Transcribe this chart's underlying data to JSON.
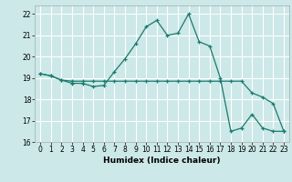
{
  "title": "",
  "xlabel": "Humidex (Indice chaleur)",
  "background_color": "#cce8e8",
  "grid_color": "#ffffff",
  "line_color": "#1a7a6e",
  "x": [
    0,
    1,
    2,
    3,
    4,
    5,
    6,
    7,
    8,
    9,
    10,
    11,
    12,
    13,
    14,
    15,
    16,
    17,
    18,
    19,
    20,
    21,
    22,
    23
  ],
  "line1": [
    19.2,
    19.1,
    18.9,
    18.75,
    18.75,
    18.6,
    18.65,
    19.3,
    19.9,
    20.6,
    21.4,
    21.7,
    21.0,
    21.1,
    22.0,
    20.7,
    20.5,
    19.0,
    16.5,
    16.65,
    17.3,
    16.65,
    16.5,
    16.5
  ],
  "line2": [
    19.2,
    19.1,
    18.9,
    18.85,
    18.85,
    18.85,
    18.85,
    18.85,
    18.85,
    18.85,
    18.85,
    18.85,
    18.85,
    18.85,
    18.85,
    18.85,
    18.85,
    18.85,
    18.85,
    18.85,
    18.3,
    18.1,
    17.8,
    16.5
  ],
  "ylim": [
    16,
    22.4
  ],
  "yticks": [
    16,
    17,
    18,
    19,
    20,
    21,
    22
  ],
  "xlim": [
    -0.5,
    23.5
  ],
  "xticks": [
    0,
    1,
    2,
    3,
    4,
    5,
    6,
    7,
    8,
    9,
    10,
    11,
    12,
    13,
    14,
    15,
    16,
    17,
    18,
    19,
    20,
    21,
    22,
    23
  ]
}
